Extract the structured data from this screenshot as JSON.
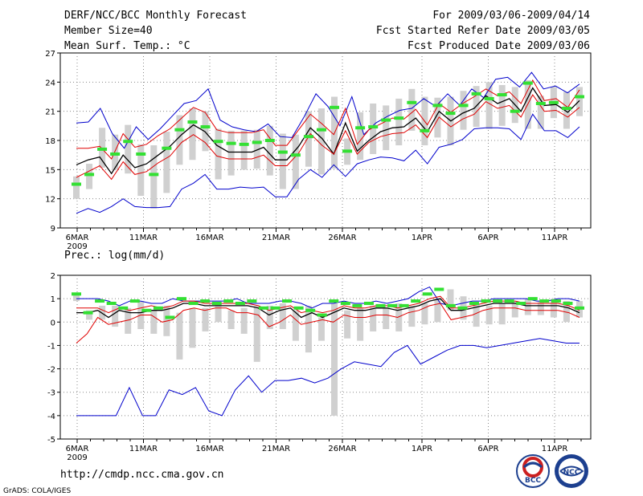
{
  "header": {
    "left": [
      "DERF/NCC/BCC Monthly Forecast",
      "Member Size=40",
      "Mean Surf. Temp.: °C"
    ],
    "right": [
      "For 2009/03/06-2009/04/14",
      "Fcst Started Refer Date 2009/03/05",
      "Fcst Produced Date 2009/03/06"
    ]
  },
  "footer": {
    "url": "http://cmdp.ncc.cma.gov.cn",
    "credit": "GrADS: COLA/IGES"
  },
  "logos": {
    "left_text": "BCC",
    "right_text": "NCC"
  },
  "colors": {
    "blue": "#0000cc",
    "red": "#e00000",
    "black": "#000000",
    "green": "#33e033",
    "gray": "#d0d0d0",
    "grid": "#888888"
  },
  "chart_data": [
    {
      "type": "line",
      "title": "Mean Surf. Temp.: °C",
      "ylim": [
        9,
        27
      ],
      "yticks": [
        9,
        12,
        15,
        18,
        21,
        24,
        27
      ],
      "x_tick_labels": [
        "6MAR",
        "11MAR",
        "16MAR",
        "21MAR",
        "26MAR",
        "1APR",
        "6APR",
        "11APR"
      ],
      "x_tick_days": [
        1,
        6,
        11,
        16,
        21,
        27,
        32,
        37
      ],
      "year_label": "2009",
      "days": 39,
      "series": [
        {
          "name": "max",
          "values": [
            19.8,
            19.9,
            21.3,
            18.7,
            17.2,
            19.4,
            18.1,
            19.2,
            20.5,
            21.8,
            22.1,
            23.3,
            20.1,
            19.4,
            19.1,
            18.9,
            19.7,
            18.4,
            18.3,
            20.4,
            22.8,
            21.5,
            19.5,
            22.5,
            18.6,
            19.8,
            20.5,
            21.1,
            21.3,
            22.3,
            21.5,
            22.8,
            21.6,
            23.3,
            22.4,
            24.3,
            24.5,
            23.5,
            25.0,
            23.3,
            23.6,
            22.9,
            23.8
          ]
        },
        {
          "name": "upper",
          "values": [
            17.2,
            17.2,
            17.4,
            16.1,
            18.7,
            17.3,
            17.6,
            18.5,
            19.2,
            20.3,
            21.4,
            20.9,
            19.1,
            18.8,
            18.8,
            18.8,
            19.1,
            17.5,
            17.5,
            19.1,
            20.7,
            19.7,
            18.6,
            21.3,
            17.6,
            19.1,
            19.7,
            20.3,
            20.2,
            21.2,
            19.6,
            21.8,
            20.9,
            21.8,
            22.5,
            23.3,
            22.6,
            23.0,
            21.8,
            24.2,
            22.1,
            22.3,
            21.4,
            23.2
          ]
        },
        {
          "name": "mean",
          "values": [
            15.5,
            16.0,
            16.3,
            14.6,
            16.5,
            15.2,
            15.6,
            16.5,
            17.4,
            18.6,
            19.6,
            18.9,
            17.5,
            16.8,
            16.8,
            16.8,
            17.3,
            16.0,
            16.0,
            17.4,
            19.3,
            18.2,
            16.6,
            19.8,
            16.9,
            18.0,
            18.9,
            19.3,
            19.4,
            20.3,
            18.9,
            21.0,
            20.0,
            20.8,
            21.3,
            22.6,
            21.8,
            22.3,
            21.0,
            23.4,
            21.6,
            21.7,
            20.9,
            22.1
          ]
        },
        {
          "name": "lower",
          "values": [
            14.2,
            14.8,
            15.4,
            14.0,
            15.8,
            14.5,
            14.8,
            15.7,
            16.4,
            17.8,
            18.6,
            17.8,
            16.4,
            16.1,
            16.1,
            16.1,
            16.5,
            15.4,
            15.4,
            16.7,
            18.7,
            17.5,
            16.6,
            19.0,
            16.6,
            17.8,
            18.4,
            18.7,
            18.8,
            19.6,
            18.3,
            20.4,
            19.4,
            20.2,
            20.7,
            22.0,
            21.3,
            21.6,
            20.4,
            22.7,
            21.0,
            21.1,
            20.4,
            21.4
          ]
        },
        {
          "name": "min",
          "values": [
            10.5,
            11.0,
            10.6,
            11.2,
            12.0,
            11.2,
            11.1,
            11.1,
            11.2,
            13.0,
            13.6,
            14.5,
            13.0,
            13.0,
            13.2,
            13.1,
            13.2,
            12.2,
            12.2,
            14.0,
            15.0,
            14.2,
            15.5,
            14.3,
            15.6,
            16.0,
            16.3,
            16.2,
            15.9,
            17.0,
            15.6,
            17.3,
            17.6,
            18.1,
            19.2,
            19.3,
            19.3,
            19.2,
            18.1,
            20.7,
            19.0,
            19.0,
            18.3,
            19.4
          ]
        }
      ],
      "markers": [
        13.5,
        14.5,
        17.1,
        16.6,
        17.9,
        16.6,
        14.5,
        17.2,
        19.1,
        19.9,
        19.4,
        17.9,
        17.7,
        17.6,
        17.8,
        18.0,
        16.8,
        16.5,
        18.4,
        19.1,
        21.4,
        16.9,
        19.3,
        19.4,
        20.1,
        20.3,
        21.9,
        19.0,
        21.6,
        20.8,
        21.6,
        22.8,
        22.3,
        22.7,
        21.0,
        23.9,
        21.8,
        21.9,
        21.3,
        22.5
      ],
      "boxes": [
        [
          12.0,
          14.3
        ],
        [
          13.0,
          15.6
        ],
        [
          15.2,
          19.3
        ],
        [
          15.0,
          18.6
        ],
        [
          14.6,
          19.6
        ],
        [
          12.3,
          17.6
        ],
        [
          11.0,
          17.5
        ],
        [
          12.6,
          18.9
        ],
        [
          15.5,
          20.6
        ],
        [
          16.0,
          21.3
        ],
        [
          16.9,
          21.0
        ],
        [
          14.0,
          19.2
        ],
        [
          14.4,
          19.0
        ],
        [
          15.0,
          19.0
        ],
        [
          15.1,
          19.1
        ],
        [
          14.4,
          19.5
        ],
        [
          13.0,
          18.7
        ],
        [
          13.0,
          18.6
        ],
        [
          15.3,
          21.0
        ],
        [
          14.5,
          21.3
        ],
        [
          15.1,
          22.5
        ],
        [
          15.5,
          18.2
        ],
        [
          16.0,
          20.9
        ],
        [
          16.6,
          21.8
        ],
        [
          17.0,
          21.6
        ],
        [
          17.5,
          22.3
        ],
        [
          19.0,
          23.3
        ],
        [
          17.5,
          22.5
        ],
        [
          18.3,
          22.4
        ],
        [
          17.5,
          22.5
        ],
        [
          19.1,
          23.1
        ],
        [
          19.4,
          23.6
        ],
        [
          19.2,
          24.0
        ],
        [
          19.5,
          23.7
        ],
        [
          19.8,
          23.5
        ],
        [
          19.2,
          24.2
        ],
        [
          19.2,
          22.6
        ],
        [
          20.3,
          23.5
        ],
        [
          19.2,
          23.0
        ],
        [
          20.5,
          23.5
        ]
      ]
    },
    {
      "type": "line",
      "title": "Prec.: log(mm/d)",
      "ylim": [
        -5,
        2
      ],
      "yticks": [
        -5,
        -4,
        -3,
        -2,
        -1,
        0,
        1,
        2
      ],
      "x_tick_labels": [
        "6MAR",
        "11MAR",
        "16MAR",
        "21MAR",
        "26MAR",
        "1APR",
        "6APR",
        "11APR"
      ],
      "x_tick_days": [
        1,
        6,
        11,
        16,
        21,
        27,
        32,
        37
      ],
      "year_label": "2009",
      "days": 39,
      "series": [
        {
          "name": "max",
          "values": [
            1.0,
            1.0,
            1.0,
            0.9,
            0.7,
            0.9,
            0.9,
            0.8,
            0.8,
            1.0,
            0.9,
            0.9,
            0.9,
            0.9,
            0.9,
            1.0,
            0.8,
            0.8,
            0.8,
            0.9,
            0.9,
            0.8,
            0.6,
            0.8,
            0.8,
            0.9,
            0.8,
            0.8,
            0.9,
            0.8,
            0.9,
            1.0,
            1.3,
            1.5,
            0.8,
            0.7,
            0.8,
            0.9,
            0.9,
            1.0,
            1.0,
            1.0,
            1.0,
            0.9,
            0.9,
            1.0,
            1.0,
            0.9
          ]
        },
        {
          "name": "upper",
          "values": [
            0.6,
            0.6,
            0.6,
            0.4,
            0.6,
            0.5,
            0.6,
            0.7,
            0.6,
            0.7,
            0.9,
            0.9,
            0.8,
            0.8,
            0.8,
            0.8,
            0.8,
            0.7,
            0.5,
            0.6,
            0.7,
            0.4,
            0.5,
            0.4,
            0.5,
            0.7,
            0.6,
            0.6,
            0.7,
            0.7,
            0.6,
            0.7,
            0.8,
            1.0,
            1.1,
            0.6,
            0.6,
            0.7,
            0.8,
            0.9,
            0.9,
            0.9,
            0.8,
            0.8,
            0.8,
            0.8,
            0.7,
            0.5
          ]
        },
        {
          "name": "mean",
          "values": [
            0.4,
            0.4,
            0.5,
            0.2,
            0.5,
            0.4,
            0.4,
            0.5,
            0.5,
            0.6,
            0.8,
            0.8,
            0.7,
            0.7,
            0.7,
            0.7,
            0.7,
            0.6,
            0.3,
            0.5,
            0.6,
            0.2,
            0.4,
            0.2,
            0.4,
            0.6,
            0.5,
            0.5,
            0.6,
            0.6,
            0.5,
            0.6,
            0.7,
            0.9,
            1.0,
            0.5,
            0.5,
            0.6,
            0.7,
            0.8,
            0.8,
            0.8,
            0.7,
            0.7,
            0.7,
            0.7,
            0.6,
            0.4
          ]
        },
        {
          "name": "lower",
          "values": [
            -0.9,
            -0.5,
            0.2,
            -0.1,
            0.0,
            0.1,
            0.3,
            0.3,
            0.0,
            0.1,
            0.5,
            0.6,
            0.5,
            0.6,
            0.6,
            0.4,
            0.4,
            0.3,
            -0.2,
            0.0,
            0.3,
            -0.1,
            0.0,
            0.1,
            0.0,
            0.3,
            0.2,
            0.2,
            0.3,
            0.3,
            0.2,
            0.4,
            0.5,
            0.7,
            0.8,
            0.1,
            0.2,
            0.3,
            0.5,
            0.6,
            0.6,
            0.6,
            0.5,
            0.5,
            0.5,
            0.5,
            0.4,
            0.2
          ]
        },
        {
          "name": "min",
          "values": [
            -4.0,
            -4.0,
            -4.0,
            -4.0,
            -2.8,
            -4.0,
            -4.0,
            -2.9,
            -3.1,
            -2.8,
            -3.8,
            -4.0,
            -2.9,
            -2.3,
            -3.0,
            -2.5,
            -2.5,
            -2.4,
            -2.6,
            -2.4,
            -2.0,
            -1.7,
            -1.8,
            -1.9,
            -1.3,
            -1.0,
            -1.8,
            -1.5,
            -1.2,
            -1.0,
            -1.0,
            -1.1,
            -1.0,
            -0.9,
            -0.8,
            -0.7,
            -0.8,
            -0.9,
            -0.9
          ]
        }
      ],
      "markers": [
        1.2,
        0.4,
        0.9,
        0.8,
        0.6,
        0.9,
        0.5,
        0.6,
        0.2,
        1.0,
        0.8,
        0.9,
        0.8,
        0.9,
        0.8,
        0.9,
        0.6,
        0.6,
        0.9,
        0.6,
        0.5,
        0.3,
        0.9,
        0.8,
        0.7,
        0.8,
        0.7,
        0.7,
        0.7,
        0.9,
        1.2,
        1.4,
        0.7,
        0.6,
        0.8,
        0.9,
        0.9,
        0.9,
        0.8,
        1.0,
        0.9,
        0.9,
        0.8,
        0.6
      ],
      "boxes": [
        [
          0.9,
          1.2
        ],
        [
          0.1,
          0.5
        ],
        [
          0.1,
          0.7
        ],
        [
          -0.2,
          0.7
        ],
        [
          -0.5,
          0.6
        ],
        [
          -0.3,
          0.9
        ],
        [
          -0.5,
          0.5
        ],
        [
          -0.6,
          0.7
        ],
        [
          -1.6,
          0.4
        ],
        [
          -1.1,
          0.6
        ],
        [
          -0.4,
          0.6
        ],
        [
          0.0,
          0.8
        ],
        [
          -0.3,
          0.5
        ],
        [
          -0.5,
          0.6
        ],
        [
          -1.7,
          0.7
        ],
        [
          -0.3,
          0.7
        ],
        [
          -0.3,
          0.8
        ],
        [
          -0.8,
          0.5
        ],
        [
          -1.3,
          0.7
        ],
        [
          -0.8,
          0.2
        ],
        [
          -4.0,
          0.8
        ],
        [
          -0.7,
          0.5
        ],
        [
          -0.8,
          0.6
        ],
        [
          -0.4,
          0.7
        ],
        [
          -0.3,
          0.6
        ],
        [
          -0.4,
          0.8
        ],
        [
          -0.2,
          0.7
        ],
        [
          -0.1,
          0.8
        ],
        [
          0.0,
          1.0
        ],
        [
          0.5,
          1.4
        ],
        [
          0.1,
          1.1
        ],
        [
          -0.2,
          0.8
        ],
        [
          -0.1,
          0.7
        ],
        [
          -0.1,
          0.8
        ],
        [
          0.2,
          0.9
        ],
        [
          0.3,
          1.0
        ],
        [
          0.3,
          0.9
        ],
        [
          0.2,
          1.0
        ],
        [
          0.0,
          0.9
        ],
        [
          0.2,
          0.9
        ]
      ]
    }
  ]
}
